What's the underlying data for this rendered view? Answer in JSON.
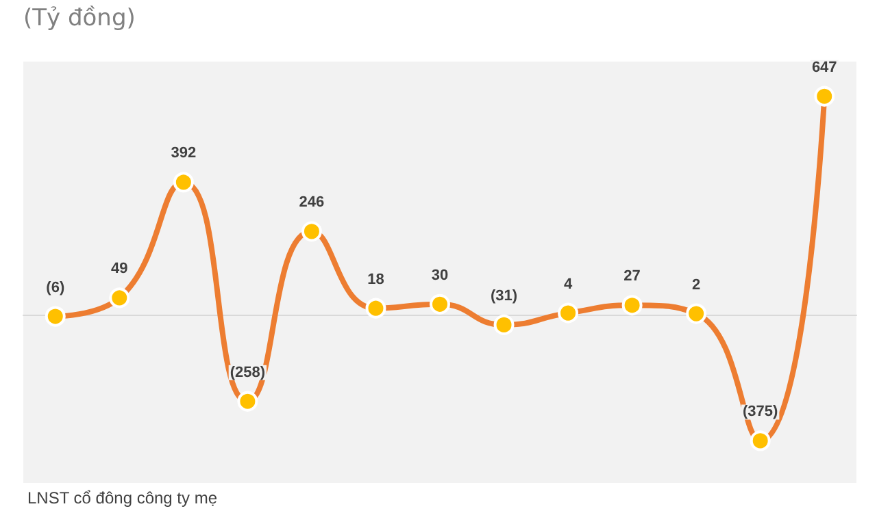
{
  "chart_data": {
    "type": "line",
    "title": "(Tỷ đồng)",
    "categories": [
      null,
      null,
      null,
      null,
      null,
      null,
      null,
      null,
      null,
      null,
      null,
      null,
      null
    ],
    "series": [
      {
        "color": "#ed7d31",
        "values": [
          -6,
          49,
          392,
          -258,
          246,
          18,
          30,
          -31,
          4,
          27,
          2,
          -375,
          647
        ],
        "value_labels": [
          "(6)",
          "49",
          "392",
          "(258)",
          "246",
          "18",
          "30",
          "(31)",
          "4",
          "27",
          "2",
          "(375)",
          "647"
        ]
      }
    ],
    "ylim": [
      -500,
      750
    ],
    "tick_labels": false,
    "grid": false,
    "marker": "circle",
    "line_style": "solid",
    "annotations": [
      "LNST cổ đông công ty mẹ"
    ]
  }
}
